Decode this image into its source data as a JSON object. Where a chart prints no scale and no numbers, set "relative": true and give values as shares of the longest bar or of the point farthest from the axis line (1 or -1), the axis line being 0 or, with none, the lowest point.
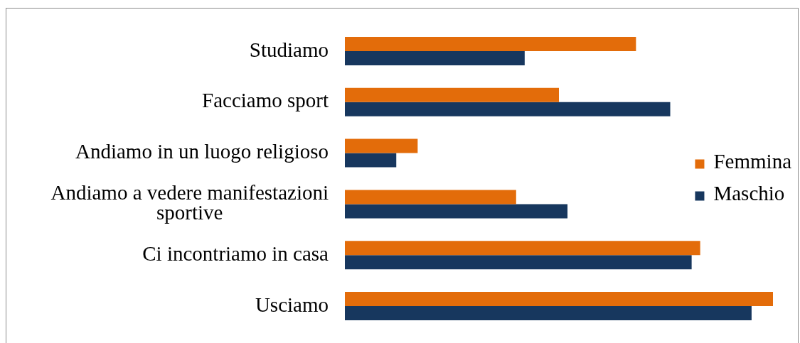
{
  "chart_data": {
    "type": "bar",
    "orientation": "horizontal",
    "relative": true,
    "categories": [
      "Studiamo",
      "Facciamo sport",
      "Andiamo in un luogo religioso",
      "Andiamo a vedere manifestazioni sportive",
      "Ci incontriamo in casa",
      "Usciamo"
    ],
    "series": [
      {
        "name": "Femmina",
        "color": "#e36c0a",
        "values": [
          0.68,
          0.5,
          0.17,
          0.4,
          0.83,
          1
        ]
      },
      {
        "name": "Maschio",
        "color": "#17375e",
        "values": [
          0.42,
          0.76,
          0.12,
          0.52,
          0.81,
          0.95
        ]
      }
    ],
    "legend": "right"
  }
}
